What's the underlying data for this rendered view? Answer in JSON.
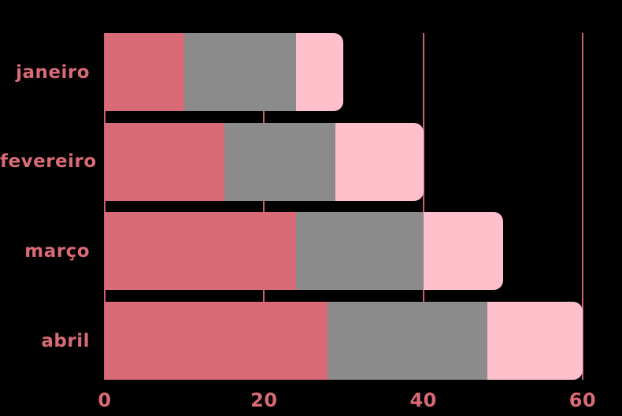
{
  "chart_data": {
    "type": "bar",
    "orientation": "horizontal",
    "stacked": true,
    "title": "",
    "xlabel": "",
    "ylabel": "",
    "categories": [
      "janeiro",
      "fevereiro",
      "março",
      "abril"
    ],
    "series": [
      {
        "name": "series-1-rose",
        "color": "#D96B76",
        "values": [
          10,
          15,
          24,
          28
        ]
      },
      {
        "name": "series-2-gray",
        "color": "#8B8B8B",
        "values": [
          14,
          14,
          16,
          20
        ]
      },
      {
        "name": "series-3-pink",
        "color": "#FFC0CB",
        "values": [
          6,
          11,
          10,
          12
        ]
      }
    ],
    "xlim": [
      0,
      60
    ],
    "x_ticks": [
      0,
      20,
      40,
      60
    ],
    "x_tick_labels": [
      "0",
      "20",
      "40",
      "60"
    ],
    "grid": "vertical",
    "legend": false,
    "colors": {
      "background": "#000000",
      "gridline": "#C9626C",
      "tick_label": "#D96B76"
    }
  }
}
